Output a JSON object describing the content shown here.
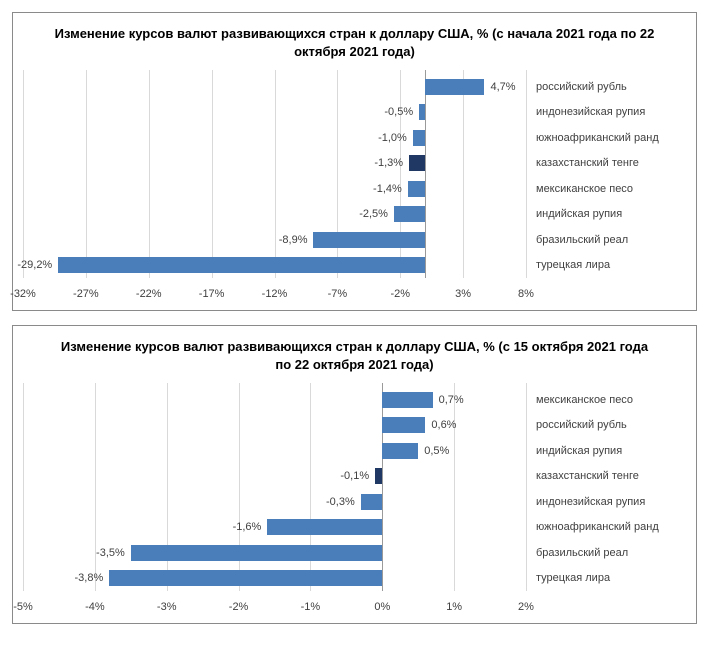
{
  "chart1": {
    "type": "bar-horizontal",
    "title": "Изменение курсов валют развивающихся стран к доллару США, % (с начала 2021 года по 22 октября 2021 года)",
    "xmin": -32,
    "xmax": 8,
    "xtick_step": 5,
    "xticks": [
      -32,
      -27,
      -22,
      -17,
      -12,
      -7,
      -2,
      3,
      8
    ],
    "xtick_labels": [
      "-32%",
      "-27%",
      "-22%",
      "-17%",
      "-12%",
      "-7%",
      "-2%",
      "3%",
      "8%"
    ],
    "bar_color_default": "#4a7ebb",
    "bar_color_highlight": "#1f3864",
    "grid_color": "#d9d9d9",
    "text_color": "#404040",
    "bars": [
      {
        "label": "российский рубль",
        "value": 4.7,
        "text": "4,7%",
        "color": "#4a7ebb"
      },
      {
        "label": "индонезийская рупия",
        "value": -0.5,
        "text": "-0,5%",
        "color": "#4a7ebb"
      },
      {
        "label": "южноафриканский ранд",
        "value": -1.0,
        "text": "-1,0%",
        "color": "#4a7ebb"
      },
      {
        "label": "казахстанский тенге",
        "value": -1.3,
        "text": "-1,3%",
        "color": "#1f3864"
      },
      {
        "label": "мексиканское песо",
        "value": -1.4,
        "text": "-1,4%",
        "color": "#4a7ebb"
      },
      {
        "label": "индийская рупия",
        "value": -2.5,
        "text": "-2,5%",
        "color": "#4a7ebb"
      },
      {
        "label": "бразильский реал",
        "value": -8.9,
        "text": "-8,9%",
        "color": "#4a7ebb"
      },
      {
        "label": "турецкая лира",
        "value": -29.2,
        "text": "-29,2%",
        "color": "#4a7ebb"
      }
    ]
  },
  "chart2": {
    "type": "bar-horizontal",
    "title": "Изменение курсов валют развивающихся стран к доллару США, % (с 15 октября 2021 года по 22 октября 2021 года)",
    "xmin": -5,
    "xmax": 2,
    "xtick_step": 1,
    "xticks": [
      -5,
      -4,
      -3,
      -2,
      -1,
      0,
      1,
      2
    ],
    "xtick_labels": [
      "-5%",
      "-4%",
      "-3%",
      "-2%",
      "-1%",
      "0%",
      "1%",
      "2%"
    ],
    "bar_color_default": "#4a7ebb",
    "bar_color_highlight": "#1f3864",
    "grid_color": "#d9d9d9",
    "text_color": "#404040",
    "bars": [
      {
        "label": "мексиканское песо",
        "value": 0.7,
        "text": "0,7%",
        "color": "#4a7ebb"
      },
      {
        "label": "российский рубль",
        "value": 0.6,
        "text": "0,6%",
        "color": "#4a7ebb"
      },
      {
        "label": "индийская рупия",
        "value": 0.5,
        "text": "0,5%",
        "color": "#4a7ebb"
      },
      {
        "label": "казахстанский тенге",
        "value": -0.1,
        "text": "-0,1%",
        "color": "#1f3864"
      },
      {
        "label": "индонезийская рупия",
        "value": -0.3,
        "text": "-0,3%",
        "color": "#4a7ebb"
      },
      {
        "label": "южноафриканский ранд",
        "value": -1.6,
        "text": "-1,6%",
        "color": "#4a7ebb"
      },
      {
        "label": "бразильский реал",
        "value": -3.5,
        "text": "-3,5%",
        "color": "#4a7ebb"
      },
      {
        "label": "турецкая лира",
        "value": -3.8,
        "text": "-3,8%",
        "color": "#4a7ebb"
      }
    ]
  }
}
